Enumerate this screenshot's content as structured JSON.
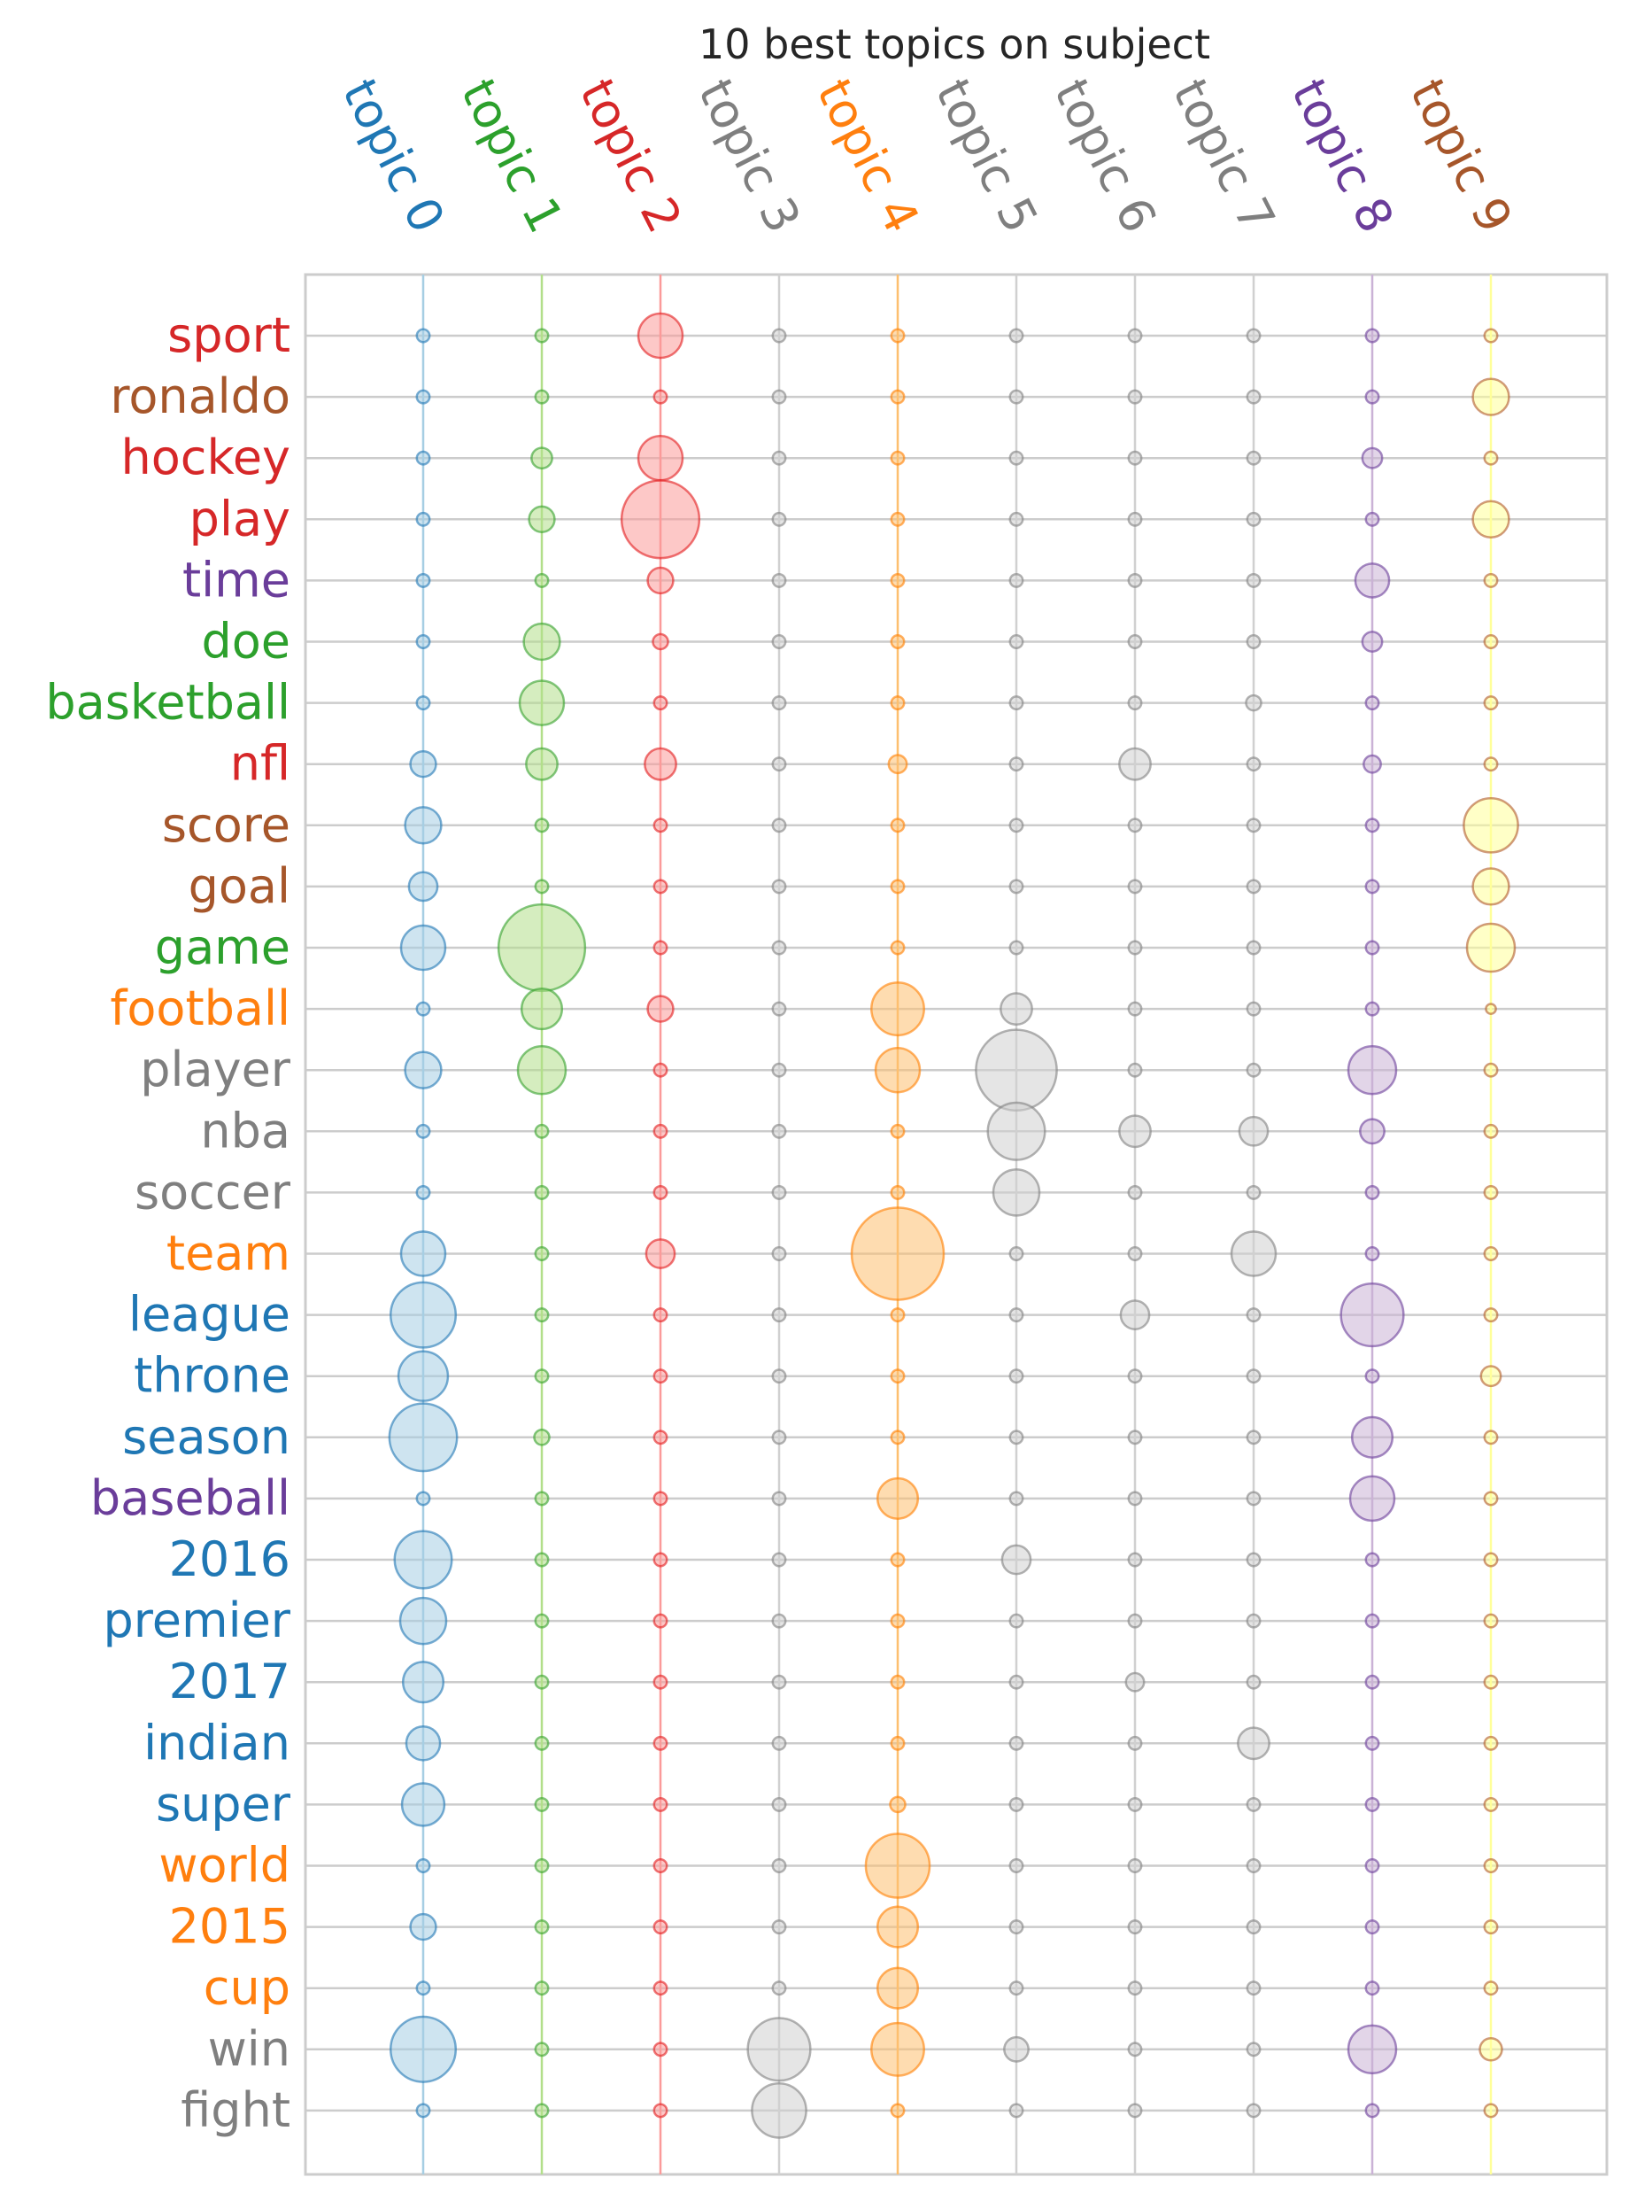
{
  "chart_data": {
    "type": "scatter",
    "title": "10 best topics on subject",
    "grid": true,
    "topics": [
      "topic 0",
      "topic 1",
      "topic 2",
      "topic 3",
      "topic 4",
      "topic 5",
      "topic 6",
      "topic 7",
      "topic 8",
      "topic 9"
    ],
    "topic_colors": [
      "#1f77b4",
      "#2ca02c",
      "#d62728",
      "#7f7f7f",
      "#ff7f0e",
      "#7f7f7f",
      "#7f7f7f",
      "#7f7f7f",
      "#6a3d9a",
      "#a6562a"
    ],
    "bubble_fill": [
      "#a6cee3",
      "#b2df8a",
      "#fb9a99",
      "#d0d0d0",
      "#fdbf6f",
      "#d0d0d0",
      "#d0d0d0",
      "#d0d0d0",
      "#cab2d6",
      "#ffff99"
    ],
    "bubble_edge": [
      "#1f77b4",
      "#33a02c",
      "#e31a1c",
      "#808080",
      "#ff7f00",
      "#808080",
      "#808080",
      "#808080",
      "#6a3d9a",
      "#b15928"
    ],
    "words": [
      "sport",
      "ronaldo",
      "hockey",
      "play",
      "time",
      "doe",
      "basketball",
      "nfl",
      "score",
      "goal",
      "game",
      "football",
      "player",
      "nba",
      "soccer",
      "team",
      "league",
      "throne",
      "season",
      "baseball",
      "2016",
      "premier",
      "2017",
      "indian",
      "super",
      "world",
      "2015",
      "cup",
      "win",
      "fight"
    ],
    "word_topic": [
      2,
      9,
      2,
      2,
      8,
      1,
      1,
      2,
      9,
      9,
      1,
      4,
      5,
      5,
      5,
      4,
      0,
      0,
      0,
      8,
      0,
      0,
      0,
      0,
      0,
      4,
      4,
      4,
      3,
      3
    ],
    "values": [
      [
        0.005,
        0.005,
        0.06,
        0.005,
        0.005,
        0.005,
        0.005,
        0.005,
        0.005,
        0.005
      ],
      [
        0.005,
        0.005,
        0.005,
        0.005,
        0.005,
        0.005,
        0.005,
        0.005,
        0.005,
        0.04
      ],
      [
        0.005,
        0.013,
        0.06,
        0.005,
        0.005,
        0.005,
        0.005,
        0.005,
        0.012,
        0.005
      ],
      [
        0.005,
        0.02,
        0.185,
        0.005,
        0.005,
        0.005,
        0.005,
        0.005,
        0.005,
        0.04
      ],
      [
        0.005,
        0.005,
        0.02,
        0.005,
        0.005,
        0.005,
        0.005,
        0.005,
        0.035,
        0.005
      ],
      [
        0.005,
        0.04,
        0.007,
        0.005,
        0.005,
        0.005,
        0.005,
        0.005,
        0.012,
        0.005
      ],
      [
        0.005,
        0.06,
        0.005,
        0.005,
        0.005,
        0.005,
        0.005,
        0.007,
        0.005,
        0.005
      ],
      [
        0.02,
        0.03,
        0.03,
        0.005,
        0.01,
        0.005,
        0.03,
        0.005,
        0.009,
        0.005
      ],
      [
        0.04,
        0.005,
        0.005,
        0.005,
        0.005,
        0.005,
        0.005,
        0.005,
        0.005,
        0.09
      ],
      [
        0.025,
        0.005,
        0.005,
        0.005,
        0.005,
        0.005,
        0.005,
        0.005,
        0.005,
        0.04
      ],
      [
        0.06,
        0.23,
        0.005,
        0.005,
        0.005,
        0.005,
        0.005,
        0.005,
        0.005,
        0.07
      ],
      [
        0.005,
        0.05,
        0.02,
        0.005,
        0.085,
        0.03,
        0.005,
        0.005,
        0.005,
        0.003
      ],
      [
        0.04,
        0.07,
        0.005,
        0.005,
        0.06,
        0.2,
        0.005,
        0.005,
        0.07,
        0.005
      ],
      [
        0.005,
        0.005,
        0.005,
        0.005,
        0.005,
        0.1,
        0.03,
        0.025,
        0.018,
        0.005
      ],
      [
        0.005,
        0.005,
        0.005,
        0.005,
        0.005,
        0.065,
        0.005,
        0.005,
        0.005,
        0.005
      ],
      [
        0.06,
        0.005,
        0.025,
        0.005,
        0.26,
        0.005,
        0.005,
        0.06,
        0.005,
        0.005
      ],
      [
        0.13,
        0.005,
        0.005,
        0.005,
        0.005,
        0.005,
        0.025,
        0.005,
        0.12,
        0.005
      ],
      [
        0.075,
        0.005,
        0.005,
        0.005,
        0.005,
        0.005,
        0.005,
        0.005,
        0.005,
        0.012
      ],
      [
        0.14,
        0.007,
        0.005,
        0.005,
        0.005,
        0.005,
        0.005,
        0.005,
        0.05,
        0.005
      ],
      [
        0.005,
        0.005,
        0.005,
        0.005,
        0.05,
        0.005,
        0.005,
        0.005,
        0.06,
        0.005
      ],
      [
        0.1,
        0.005,
        0.005,
        0.005,
        0.005,
        0.025,
        0.005,
        0.005,
        0.005,
        0.005
      ],
      [
        0.065,
        0.005,
        0.005,
        0.005,
        0.005,
        0.005,
        0.005,
        0.005,
        0.005,
        0.005
      ],
      [
        0.05,
        0.005,
        0.005,
        0.005,
        0.005,
        0.005,
        0.01,
        0.005,
        0.005,
        0.005
      ],
      [
        0.035,
        0.005,
        0.005,
        0.005,
        0.005,
        0.005,
        0.005,
        0.03,
        0.005,
        0.005
      ],
      [
        0.055,
        0.005,
        0.005,
        0.005,
        0.007,
        0.005,
        0.005,
        0.005,
        0.005,
        0.005
      ],
      [
        0.005,
        0.005,
        0.005,
        0.005,
        0.125,
        0.005,
        0.005,
        0.005,
        0.005,
        0.005
      ],
      [
        0.02,
        0.005,
        0.005,
        0.005,
        0.05,
        0.005,
        0.005,
        0.005,
        0.005,
        0.005
      ],
      [
        0.005,
        0.005,
        0.005,
        0.005,
        0.05,
        0.005,
        0.005,
        0.005,
        0.005,
        0.005
      ],
      [
        0.13,
        0.005,
        0.005,
        0.12,
        0.085,
        0.018,
        0.005,
        0.005,
        0.07,
        0.015
      ],
      [
        0.005,
        0.005,
        0.005,
        0.09,
        0.005,
        0.005,
        0.005,
        0.005,
        0.005,
        0.005
      ]
    ]
  }
}
